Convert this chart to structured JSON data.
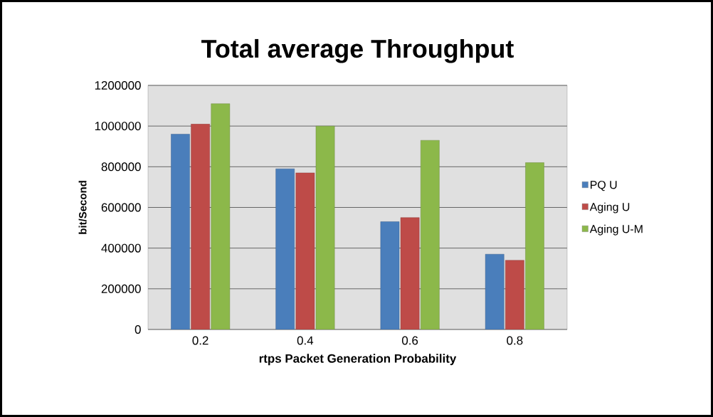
{
  "chart_data": {
    "type": "bar",
    "title": "Total average Throughput",
    "xlabel": "rtps Packet  Generation Probability",
    "ylabel": "bit/Second",
    "categories": [
      "0.2",
      "0.4",
      "0.6",
      "0.8"
    ],
    "series": [
      {
        "name": "PQ  U",
        "color": "#4a7ebb",
        "values": [
          960000,
          790000,
          530000,
          370000
        ]
      },
      {
        "name": "Aging  U",
        "color": "#be4b48",
        "values": [
          1010000,
          770000,
          550000,
          340000
        ]
      },
      {
        "name": "Aging  U-M",
        "color": "#8cb84a",
        "values": [
          1110000,
          1000000,
          930000,
          820000
        ]
      }
    ],
    "ylim": [
      0,
      1200000
    ],
    "yticks": [
      0,
      200000,
      400000,
      600000,
      800000,
      1000000,
      1200000
    ],
    "grid": "y",
    "legend": "right"
  }
}
